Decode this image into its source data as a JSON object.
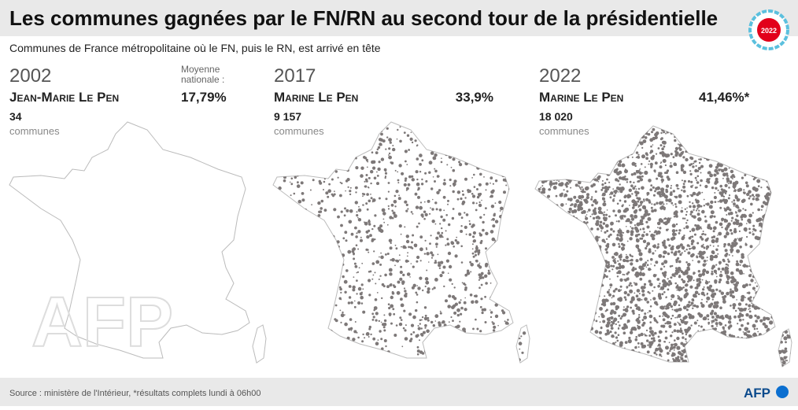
{
  "header": {
    "title": "Les communes gagnées par le FN/RN au second tour de la présidentielle",
    "badge": "2022",
    "subtitle": "Communes de France métropolitaine où le FN, puis le RN, est arrivé en tête"
  },
  "panels": [
    {
      "year": "2002",
      "candidate": "Jean-Marie Le Pen",
      "average_label": "Moyenne nationale :",
      "share": "17,79%",
      "communes": "34",
      "communes_unit": "communes"
    },
    {
      "year": "2017",
      "candidate": "Marine Le Pen",
      "share": "33,9%",
      "communes": "9 157",
      "communes_unit": "communes"
    },
    {
      "year": "2022",
      "candidate": "Marine Le Pen",
      "share": "41,46%*",
      "communes": "18 020",
      "communes_unit": "communes"
    }
  ],
  "watermark": "AFP",
  "footer": {
    "source": "Source : ministère de l'Intérieur, *résultats complets lundi à 06h00",
    "logo": "AFP"
  }
}
